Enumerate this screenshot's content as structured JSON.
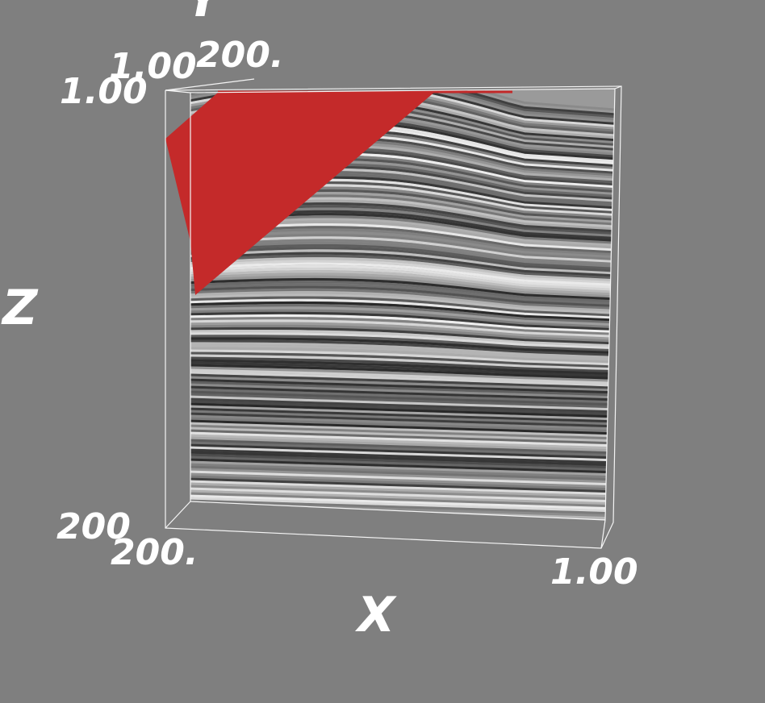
{
  "axes": {
    "x": {
      "label": "X",
      "ticks": [
        "200.",
        "1.00"
      ]
    },
    "y": {
      "label": "Y",
      "ticks": [
        "1.00",
        "200."
      ]
    },
    "z": {
      "label": "Z",
      "ticks": [
        "1.00",
        "200"
      ]
    }
  }
}
